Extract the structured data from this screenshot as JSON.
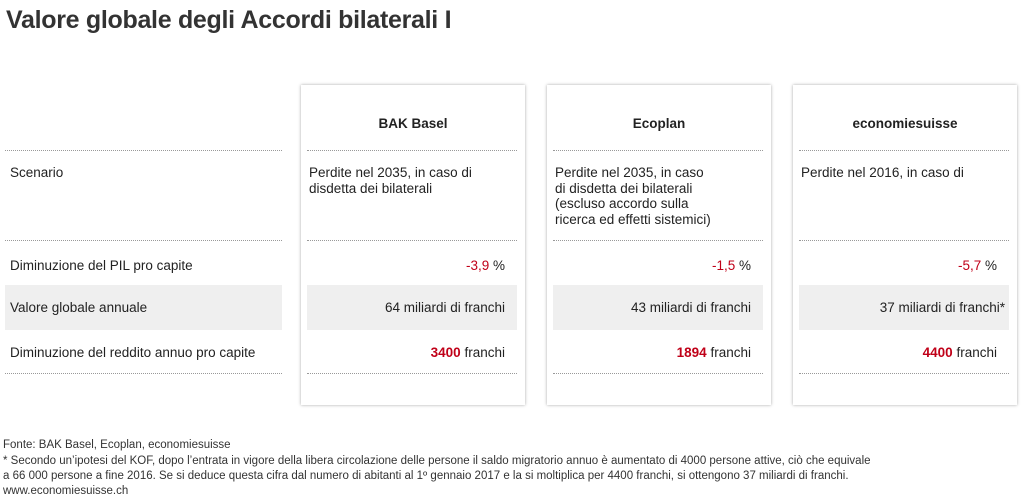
{
  "header": {
    "title": "Valore globale degli Accordi bilaterali I"
  },
  "table": {
    "row_labels": [
      "Scenario",
      "Diminuzione del PIL pro capite",
      "Valore globale annuale",
      "Diminuzione del reddito annuo pro capite"
    ],
    "columns": [
      {
        "name": "BAK Basel",
        "scenario": [
          "Perdite nel 2035, in caso di",
          "disdetta dei bilaterali"
        ],
        "pil": {
          "value": "-3,9",
          "unit": "%"
        },
        "valore": "64 miliardi di franchi",
        "reddito": {
          "value": "3400",
          "unit": "franchi"
        }
      },
      {
        "name": "Ecoplan",
        "scenario": [
          "Perdite nel 2035, in caso",
          "di disdetta dei bilaterali",
          "(escluso accordo sulla",
          "ricerca ed effetti sistemici)"
        ],
        "pil": {
          "value": "-1,5",
          "unit": "%"
        },
        "valore": "43 miliardi di franchi",
        "reddito": {
          "value": "1894",
          "unit": "franchi"
        }
      },
      {
        "name": "economiesuisse",
        "scenario": [
          "Perdite nel 2016, in caso di"
        ],
        "pil": {
          "value": "-5,7",
          "unit": "%"
        },
        "valore": "37 miliardi di franchi*",
        "reddito": {
          "value": "4400",
          "unit": "franchi"
        }
      }
    ]
  },
  "footer": {
    "source": "Fonte: BAK Basel, Ecoplan, economiesuisse",
    "notes": [
      "* Secondo un’ipotesi del KOF, dopo l’entrata in vigore della libera circolazione delle persone il saldo migratorio annuo è aumentato di 4000 persone attive, ciò che equivale",
      "a 66 000 persone a fine 2016. Se si deduce questa cifra dal numero di abitanti al 1º gennaio 2017 e la si moltiplica per 4400 franchi, si ottengono 37 miliardi di franchi."
    ],
    "url": "www.economiesuisse.ch"
  }
}
